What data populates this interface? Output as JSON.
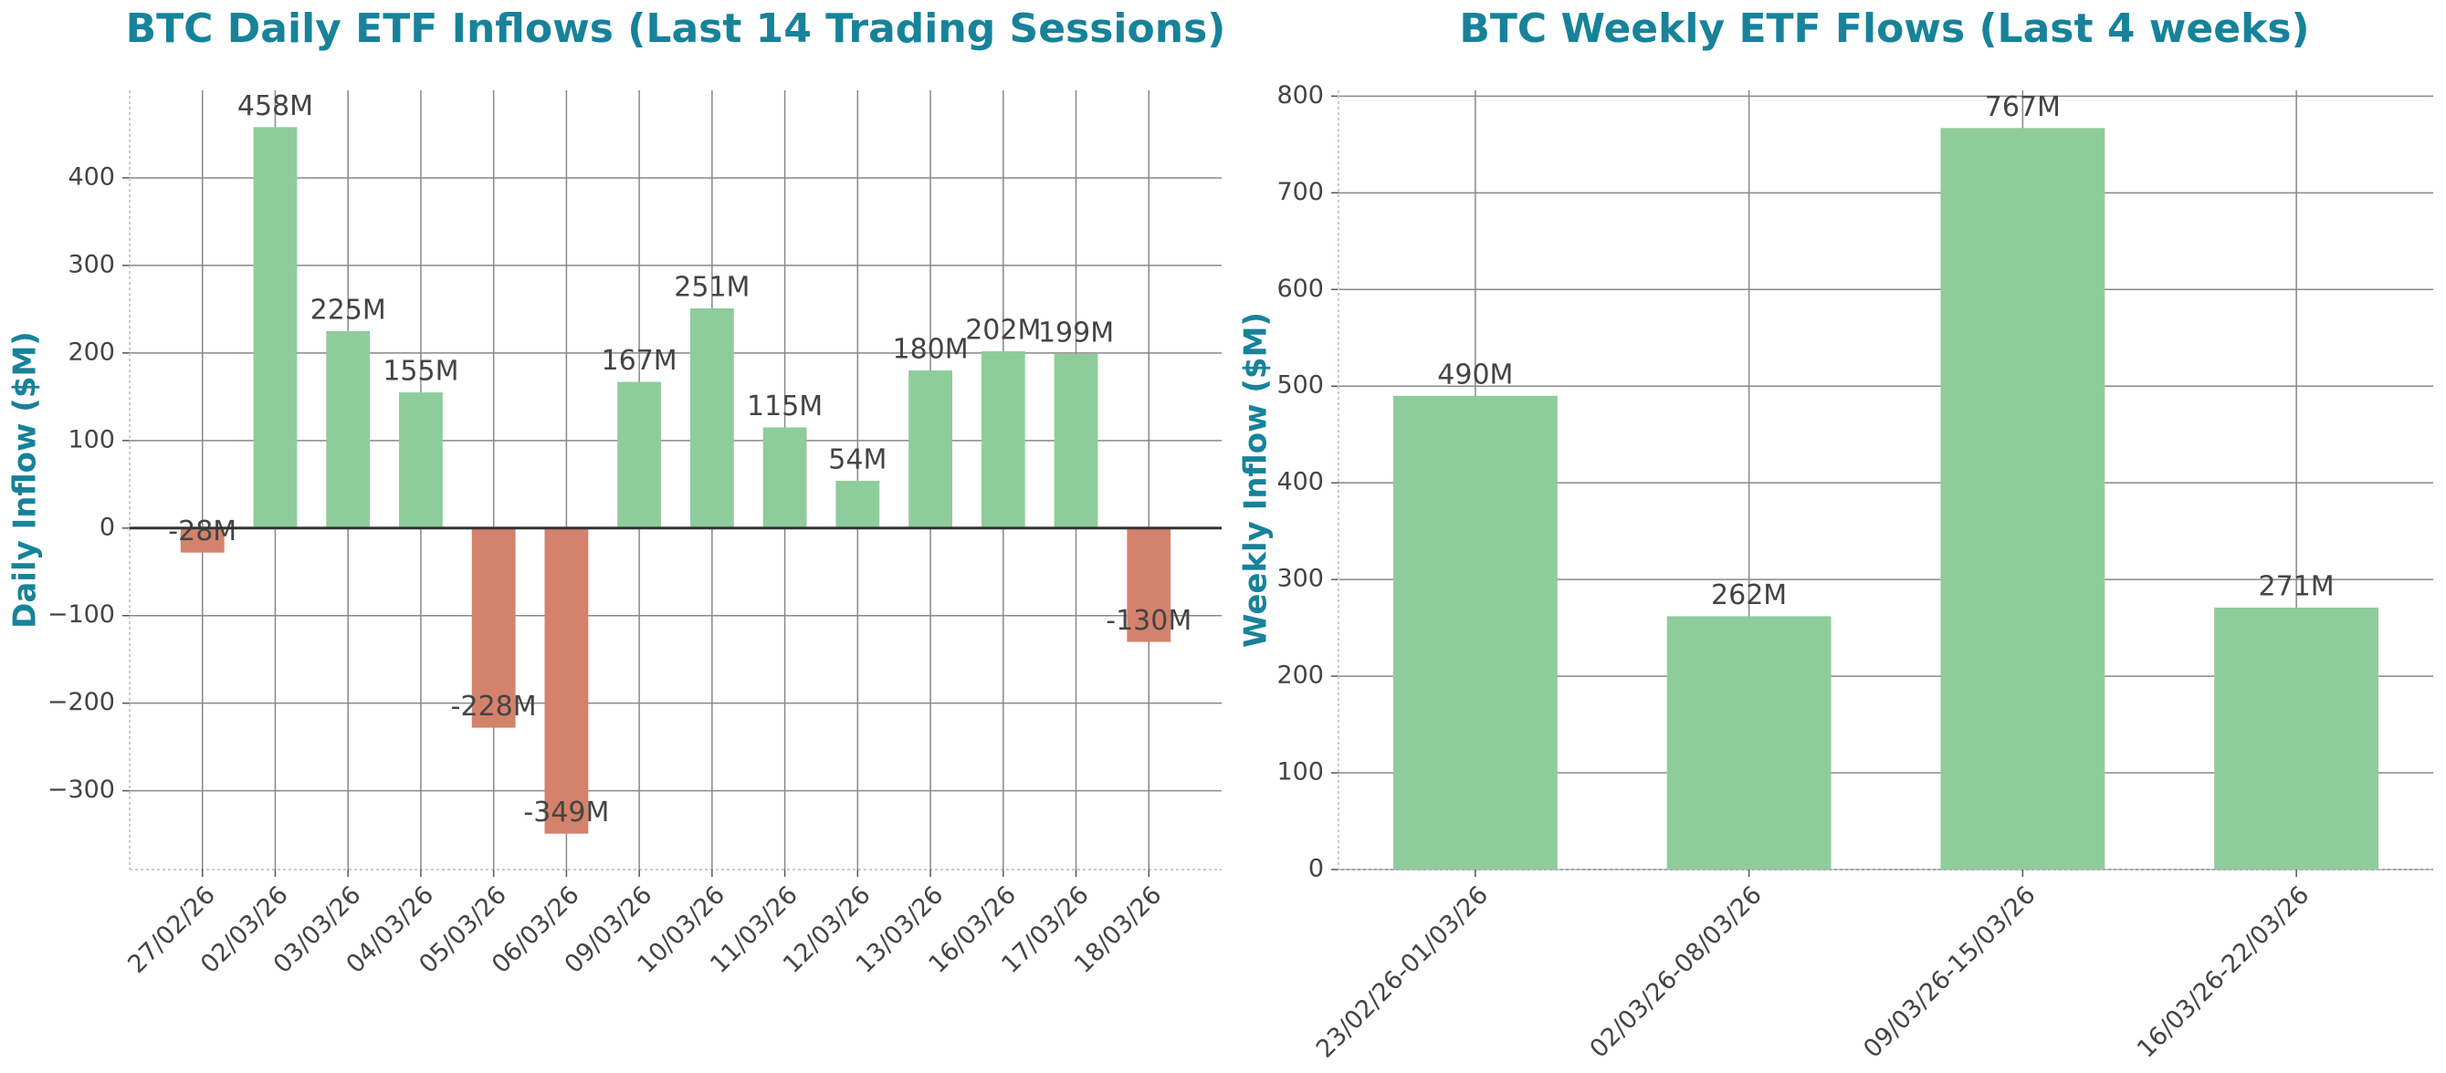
{
  "chart_data": [
    {
      "type": "bar",
      "title": "BTC Daily ETF Inflows (Last 14 Trading Sessions)",
      "y_label": "Daily Inflow ($M)",
      "categories": [
        "27/02/26",
        "02/03/26",
        "03/03/26",
        "04/03/26",
        "05/03/26",
        "06/03/26",
        "09/03/26",
        "10/03/26",
        "11/03/26",
        "12/03/26",
        "13/03/26",
        "16/03/26",
        "17/03/26",
        "18/03/26"
      ],
      "values": [
        -28,
        458,
        225,
        155,
        -228,
        -349,
        167,
        251,
        115,
        54,
        180,
        202,
        199,
        -130
      ],
      "value_labels": [
        "-28M",
        "458M",
        "225M",
        "155M",
        "-228M",
        "-349M",
        "167M",
        "251M",
        "115M",
        "54M",
        "180M",
        "202M",
        "199M",
        "-130M"
      ],
      "color": "#8fcc9b",
      "negative_color": "#d4826c",
      "ylim": [
        -390,
        500
      ],
      "yticks": [
        {
          "value": -300,
          "label": "−300"
        },
        {
          "value": -200,
          "label": "−200"
        },
        {
          "value": -100,
          "label": "−100"
        },
        0,
        100,
        200,
        300,
        400
      ],
      "grid": true,
      "zero_line": true
    },
    {
      "type": "bar",
      "title": "BTC Weekly ETF Flows (Last 4 weeks)",
      "y_label": "Weekly Inflow ($M)",
      "categories": [
        "23/02/26-01/03/26",
        "02/03/26-08/03/26",
        "09/03/26-15/03/26",
        "16/03/26-22/03/26"
      ],
      "values": [
        490,
        262,
        767,
        271
      ],
      "value_labels": [
        "490M",
        "262M",
        "767M",
        "271M"
      ],
      "color": "#8fcc9b",
      "negative_color": "#d4826c",
      "ylim": [
        0,
        806
      ],
      "yticks": [
        0,
        100,
        200,
        300,
        400,
        500,
        600,
        700,
        800
      ],
      "grid": true,
      "zero_line": false
    }
  ]
}
